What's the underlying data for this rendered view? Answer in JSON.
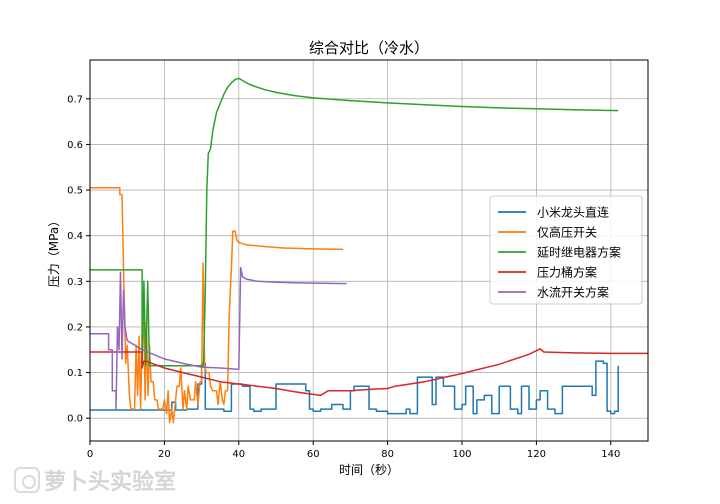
{
  "chart_data": {
    "type": "line",
    "title": "综合对比（冷水）",
    "xlabel": "时间（秒）",
    "ylabel": "压力（MPa）",
    "xlim": [
      0,
      150
    ],
    "ylim": [
      -0.05,
      0.785
    ],
    "xticks": [
      0,
      20,
      40,
      60,
      80,
      100,
      120,
      140
    ],
    "yticks": [
      0.0,
      0.1,
      0.2,
      0.3,
      0.4,
      0.5,
      0.6,
      0.7
    ],
    "grid": true,
    "legend_position": "center-right",
    "series": [
      {
        "name": "小米龙头直连",
        "color": "#1f77b4",
        "points": [
          [
            0,
            0.018
          ],
          [
            22,
            0.018
          ],
          [
            22,
            0.035
          ],
          [
            23,
            0.035
          ],
          [
            23,
            0.018
          ],
          [
            26,
            0.018
          ],
          [
            26,
            0.02
          ],
          [
            29,
            0.02
          ],
          [
            29,
            0.075
          ],
          [
            30,
            0.075
          ],
          [
            30,
            0.12
          ],
          [
            31,
            0.12
          ],
          [
            31,
            0.02
          ],
          [
            36,
            0.02
          ],
          [
            36,
            0.015
          ],
          [
            38,
            0.015
          ],
          [
            38,
            0.075
          ],
          [
            41,
            0.075
          ],
          [
            41,
            0.07
          ],
          [
            43,
            0.07
          ],
          [
            43,
            0.02
          ],
          [
            44,
            0.02
          ],
          [
            44,
            0.015
          ],
          [
            46,
            0.015
          ],
          [
            46,
            0.02
          ],
          [
            50,
            0.02
          ],
          [
            50,
            0.075
          ],
          [
            58,
            0.075
          ],
          [
            58,
            0.06
          ],
          [
            59,
            0.06
          ],
          [
            59,
            0.02
          ],
          [
            60,
            0.02
          ],
          [
            60,
            0.015
          ],
          [
            62,
            0.015
          ],
          [
            62,
            0.02
          ],
          [
            65,
            0.02
          ],
          [
            65,
            0.03
          ],
          [
            68,
            0.03
          ],
          [
            68,
            0.02
          ],
          [
            70,
            0.02
          ],
          [
            70,
            0.06
          ],
          [
            71,
            0.06
          ],
          [
            71,
            0.07
          ],
          [
            75,
            0.07
          ],
          [
            75,
            0.02
          ],
          [
            77,
            0.02
          ],
          [
            77,
            0.015
          ],
          [
            80,
            0.015
          ],
          [
            80,
            0.01
          ],
          [
            85,
            0.01
          ],
          [
            85,
            0.02
          ],
          [
            86,
            0.02
          ],
          [
            86,
            0.01
          ],
          [
            88,
            0.01
          ],
          [
            88,
            0.09
          ],
          [
            92,
            0.09
          ],
          [
            92,
            0.03
          ],
          [
            93,
            0.03
          ],
          [
            93,
            0.09
          ],
          [
            95,
            0.09
          ],
          [
            95,
            0.07
          ],
          [
            98,
            0.07
          ],
          [
            98,
            0.02
          ],
          [
            100,
            0.02
          ],
          [
            100,
            0.03
          ],
          [
            101,
            0.03
          ],
          [
            101,
            0.07
          ],
          [
            103,
            0.07
          ],
          [
            103,
            0.01
          ],
          [
            104,
            0.01
          ],
          [
            104,
            0.04
          ],
          [
            106,
            0.04
          ],
          [
            106,
            0.05
          ],
          [
            108,
            0.05
          ],
          [
            108,
            0.01
          ],
          [
            110,
            0.01
          ],
          [
            110,
            0.07
          ],
          [
            113,
            0.07
          ],
          [
            113,
            0.02
          ],
          [
            115,
            0.02
          ],
          [
            115,
            0.01
          ],
          [
            116,
            0.01
          ],
          [
            116,
            0.07
          ],
          [
            118,
            0.07
          ],
          [
            118,
            0.02
          ],
          [
            120,
            0.02
          ],
          [
            120,
            0.04
          ],
          [
            121,
            0.04
          ],
          [
            121,
            0.06
          ],
          [
            123,
            0.06
          ],
          [
            123,
            0.02
          ],
          [
            125,
            0.02
          ],
          [
            125,
            0.01
          ],
          [
            127,
            0.01
          ],
          [
            127,
            0.07
          ],
          [
            135,
            0.07
          ],
          [
            135,
            0.05
          ],
          [
            136,
            0.05
          ],
          [
            136,
            0.125
          ],
          [
            138,
            0.125
          ],
          [
            138,
            0.12
          ],
          [
            139,
            0.12
          ],
          [
            139,
            0.015
          ],
          [
            140,
            0.015
          ],
          [
            140,
            0.01
          ],
          [
            141,
            0.01
          ],
          [
            141,
            0.015
          ],
          [
            142,
            0.015
          ],
          [
            142,
            0.115
          ]
        ]
      },
      {
        "name": "仅高压开关",
        "color": "#ff7f0e",
        "points": [
          [
            0,
            0.505
          ],
          [
            8,
            0.505
          ],
          [
            8,
            0.49
          ],
          [
            8.6,
            0.49
          ],
          [
            9,
            0.33
          ],
          [
            9.6,
            0.12
          ],
          [
            10,
            0.16
          ],
          [
            10.6,
            0.05
          ],
          [
            11,
            0.02
          ],
          [
            12,
            0.02
          ],
          [
            12.4,
            0.16
          ],
          [
            12.8,
            0.05
          ],
          [
            13.2,
            0.18
          ],
          [
            13.6,
            0.02
          ],
          [
            14,
            0.18
          ],
          [
            14.4,
            0.28
          ],
          [
            14.8,
            0.04
          ],
          [
            15.2,
            0.21
          ],
          [
            15.6,
            0.05
          ],
          [
            16,
            0.16
          ],
          [
            16.4,
            0.08
          ],
          [
            17,
            0.08
          ],
          [
            17.4,
            0.04
          ],
          [
            18,
            0.04
          ],
          [
            18.4,
            0.02
          ],
          [
            19,
            0.02
          ],
          [
            19.6,
            0.02
          ],
          [
            20,
            0.04
          ],
          [
            20.6,
            0.01
          ],
          [
            21,
            0.06
          ],
          [
            21.4,
            -0.01
          ],
          [
            22,
            0.02
          ],
          [
            22.4,
            -0.01
          ],
          [
            23,
            0.04
          ],
          [
            23.4,
            0.07
          ],
          [
            24,
            0.07
          ],
          [
            24.4,
            0.11
          ],
          [
            25,
            0.02
          ],
          [
            25.4,
            0.06
          ],
          [
            26,
            0.02
          ],
          [
            26.4,
            0.07
          ],
          [
            27,
            0.04
          ],
          [
            28,
            0.04
          ],
          [
            28.4,
            0.08
          ],
          [
            29,
            0.03
          ],
          [
            29.6,
            0.08
          ],
          [
            30,
            0.08
          ],
          [
            30.4,
            0.34
          ],
          [
            30.8,
            0.12
          ],
          [
            31.2,
            0.1
          ],
          [
            32,
            0.1
          ],
          [
            32.4,
            0.07
          ],
          [
            33,
            0.06
          ],
          [
            34,
            0.06
          ],
          [
            34.4,
            0.03
          ],
          [
            35,
            0.08
          ],
          [
            35.6,
            0.04
          ],
          [
            36,
            0.03
          ],
          [
            36.4,
            0.06
          ],
          [
            37,
            0.06
          ],
          [
            37.4,
            0.22
          ],
          [
            38,
            0.33
          ],
          [
            38.4,
            0.41
          ],
          [
            39,
            0.41
          ],
          [
            39.5,
            0.39
          ],
          [
            40,
            0.385
          ],
          [
            42,
            0.38
          ],
          [
            46,
            0.377
          ],
          [
            52,
            0.373
          ],
          [
            60,
            0.371
          ],
          [
            68,
            0.37
          ]
        ]
      },
      {
        "name": "延时继电器方案",
        "color": "#2ca02c",
        "points": [
          [
            0,
            0.325
          ],
          [
            14,
            0.325
          ],
          [
            14,
            0.115
          ],
          [
            14.5,
            0.3
          ],
          [
            15,
            0.115
          ],
          [
            15.5,
            0.3
          ],
          [
            16,
            0.115
          ],
          [
            30.5,
            0.115
          ],
          [
            31,
            0.28
          ],
          [
            31.4,
            0.5
          ],
          [
            31.8,
            0.58
          ],
          [
            32.4,
            0.59
          ],
          [
            33,
            0.63
          ],
          [
            34,
            0.67
          ],
          [
            35,
            0.69
          ],
          [
            36,
            0.71
          ],
          [
            37,
            0.725
          ],
          [
            38,
            0.735
          ],
          [
            39,
            0.742
          ],
          [
            40,
            0.745
          ],
          [
            41,
            0.74
          ],
          [
            42,
            0.735
          ],
          [
            44,
            0.728
          ],
          [
            47,
            0.72
          ],
          [
            50,
            0.714
          ],
          [
            55,
            0.707
          ],
          [
            60,
            0.702
          ],
          [
            70,
            0.696
          ],
          [
            80,
            0.691
          ],
          [
            90,
            0.687
          ],
          [
            100,
            0.683
          ],
          [
            110,
            0.68
          ],
          [
            120,
            0.678
          ],
          [
            130,
            0.676
          ],
          [
            142,
            0.674
          ]
        ]
      },
      {
        "name": "压力桶方案",
        "color": "#d62728",
        "points": [
          [
            0,
            0.145
          ],
          [
            14,
            0.145
          ],
          [
            14,
            0.11
          ],
          [
            14.5,
            0.125
          ],
          [
            15,
            0.125
          ],
          [
            20,
            0.11
          ],
          [
            25,
            0.1
          ],
          [
            30,
            0.09
          ],
          [
            35,
            0.08
          ],
          [
            40,
            0.075
          ],
          [
            45,
            0.07
          ],
          [
            50,
            0.065
          ],
          [
            55,
            0.058
          ],
          [
            62,
            0.05
          ],
          [
            64,
            0.06
          ],
          [
            70,
            0.06
          ],
          [
            75,
            0.063
          ],
          [
            80,
            0.065
          ],
          [
            82,
            0.07
          ],
          [
            90,
            0.08
          ],
          [
            100,
            0.098
          ],
          [
            110,
            0.118
          ],
          [
            118,
            0.14
          ],
          [
            120,
            0.148
          ],
          [
            121,
            0.152
          ],
          [
            122,
            0.145
          ],
          [
            130,
            0.143
          ],
          [
            140,
            0.142
          ],
          [
            150,
            0.142
          ]
        ]
      },
      {
        "name": "水流开关方案",
        "color": "#9467bd",
        "points": [
          [
            0,
            0.185
          ],
          [
            5,
            0.185
          ],
          [
            5,
            0.15
          ],
          [
            6,
            0.15
          ],
          [
            6,
            0.06
          ],
          [
            7,
            0.06
          ],
          [
            7,
            0.02
          ],
          [
            7.4,
            0.2
          ],
          [
            7.8,
            0.15
          ],
          [
            8.2,
            0.32
          ],
          [
            8.6,
            0.13
          ],
          [
            9,
            0.28
          ],
          [
            9.4,
            0.2
          ],
          [
            10,
            0.17
          ],
          [
            14,
            0.15
          ],
          [
            20,
            0.13
          ],
          [
            25,
            0.12
          ],
          [
            30,
            0.112
          ],
          [
            35,
            0.11
          ],
          [
            40,
            0.107
          ],
          [
            40.5,
            0.33
          ],
          [
            41,
            0.31
          ],
          [
            42,
            0.305
          ],
          [
            45,
            0.3
          ],
          [
            50,
            0.298
          ],
          [
            55,
            0.297
          ],
          [
            60,
            0.296
          ],
          [
            69,
            0.295
          ]
        ]
      }
    ]
  },
  "watermark": {
    "logo_icon": "radish-logo-icon",
    "text": "萝卜头实验室"
  }
}
